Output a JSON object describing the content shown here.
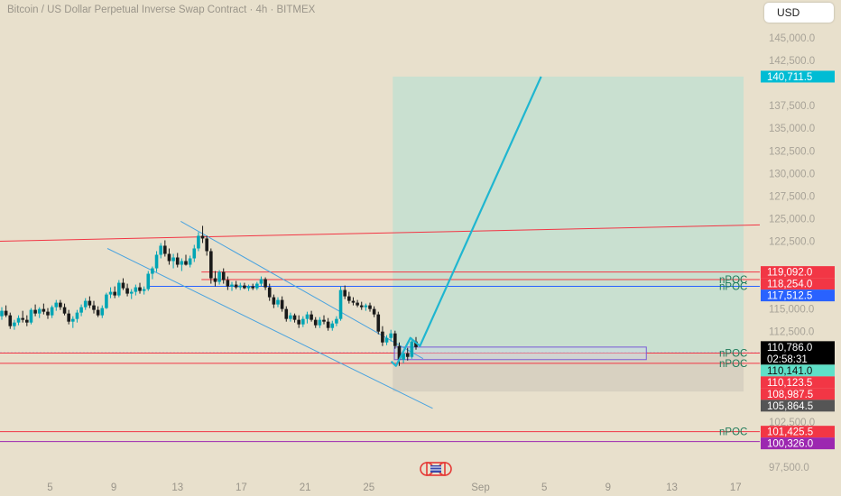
{
  "header": {
    "title": "Bitcoin / US Dollar Perpetual Inverse Swap Contract · 4h · BITMEX",
    "currency": "USD"
  },
  "chart_data": {
    "type": "candlestick",
    "ylim": [
      96000,
      147000
    ],
    "y_ticks": [
      {
        "v": 145000,
        "label": "145,000.0"
      },
      {
        "v": 142500,
        "label": "142,500.0"
      },
      {
        "v": 137500,
        "label": "137,500.0"
      },
      {
        "v": 135000,
        "label": "135,000.0"
      },
      {
        "v": 132500,
        "label": "132,500.0"
      },
      {
        "v": 130000,
        "label": "130,000.0"
      },
      {
        "v": 127500,
        "label": "127,500.0"
      },
      {
        "v": 125000,
        "label": "125,000.0"
      },
      {
        "v": 122500,
        "label": "122,500.0"
      },
      {
        "v": 115000,
        "label": "115,000.0"
      },
      {
        "v": 112500,
        "label": "112,500.0"
      },
      {
        "v": 102500,
        "label": "102,500.0"
      },
      {
        "v": 97500,
        "label": "97,500.0"
      }
    ],
    "x_ticks": [
      {
        "day": 5,
        "label": "5"
      },
      {
        "day": 9,
        "label": "9"
      },
      {
        "day": 13,
        "label": "13"
      },
      {
        "day": 17,
        "label": "17"
      },
      {
        "day": 21,
        "label": "21"
      },
      {
        "day": 25,
        "label": "25"
      },
      {
        "day": 32,
        "label": "Sep"
      },
      {
        "day": 36,
        "label": "5"
      },
      {
        "day": 40,
        "label": "9"
      },
      {
        "day": 44,
        "label": "13"
      },
      {
        "day": 48,
        "label": "17"
      }
    ],
    "price_tags": [
      {
        "value": 140711.5,
        "label": "140,711.5",
        "color": "#00bcd4",
        "text_color": "#ffffff"
      },
      {
        "value": 119092.0,
        "label": "119,092.0",
        "color": "#f23645",
        "text_color": "#ffffff"
      },
      {
        "value": 118254.0,
        "label": "118,254.0",
        "color": "#f23645",
        "text_color": "#ffffff"
      },
      {
        "value": 117512.5,
        "label": "117,512.5",
        "color": "#2962ff",
        "text_color": "#ffffff"
      },
      {
        "value": 110786.0,
        "label": "110,786.0",
        "color": "#000000",
        "text_color": "#ffffff",
        "countdown": "02:58:31"
      },
      {
        "value": 110141.0,
        "label": "110,141.0",
        "color": "#5fe0c8",
        "text_color": "#111111"
      },
      {
        "value": 110123.5,
        "label": "110,123.5",
        "color": "#f23645",
        "text_color": "#ffffff"
      },
      {
        "value": 108987.5,
        "label": "108,987.5",
        "color": "#f23645",
        "text_color": "#ffffff"
      },
      {
        "value": 105864.5,
        "label": "105,864.5",
        "color": "#555555",
        "text_color": "#ffffff"
      },
      {
        "value": 101425.5,
        "label": "101,425.5",
        "color": "#f23645",
        "text_color": "#ffffff"
      },
      {
        "value": 100326.0,
        "label": "100,326.0",
        "color": "#9c27b0",
        "text_color": "#ffffff"
      }
    ],
    "npoc_labels": [
      {
        "value": 118254.0,
        "label": "nPOC"
      },
      {
        "value": 117512.5,
        "label": "nPOC"
      },
      {
        "value": 110123.5,
        "label": "nPOC"
      },
      {
        "value": 108987.5,
        "label": "nPOC"
      },
      {
        "value": 101425.5,
        "label": "nPOC"
      }
    ],
    "horizontal_lines": [
      {
        "value": 119092.0,
        "from_day": 14.5,
        "color": "#f23645"
      },
      {
        "value": 118254.0,
        "from_day": 14.5,
        "color": "#f23645"
      },
      {
        "value": 117512.5,
        "from_day": 11.2,
        "color": "#2962ff"
      },
      {
        "value": 110141.0,
        "from_day": 0,
        "color": "#2962ff",
        "dashed": true
      },
      {
        "value": 110123.5,
        "from_day": 0,
        "color": "#f23645"
      },
      {
        "value": 108987.5,
        "from_day": 0,
        "color": "#f23645"
      },
      {
        "value": 101425.5,
        "from_day": 0,
        "color": "#f23645"
      },
      {
        "value": 100326.0,
        "from_day": 0,
        "color": "#9c27b0"
      }
    ],
    "resistance_line": {
      "day1": 0,
      "price1": 122500,
      "day2": 48,
      "price2": 124300,
      "color": "#f23645"
    },
    "channel_upper": {
      "day1": 13.2,
      "price1": 124700,
      "day2": 28.4,
      "price2": 109500,
      "color": "#4aa3df"
    },
    "channel_lower": {
      "day1": 8.6,
      "price1": 121700,
      "day2": 29.0,
      "price2": 104000,
      "color": "#4aa3df"
    },
    "long_position": {
      "day_start": 26.5,
      "day_end": 48.5,
      "entry": 110141.0,
      "target": 140711.5,
      "stop": 105864.5
    },
    "forecast_path": [
      {
        "day": 26.4,
        "price": 109200
      },
      {
        "day": 26.7,
        "price": 108700
      },
      {
        "day": 27.6,
        "price": 111800
      },
      {
        "day": 28.2,
        "price": 110900
      },
      {
        "day": 35.8,
        "price": 140711.5
      }
    ],
    "volume_profile_box": {
      "day_start": 26.6,
      "day_end": 42.4,
      "top": 110786.0,
      "bottom": 109400
    },
    "candles": [
      {
        "o": 114200,
        "h": 115200,
        "l": 113800,
        "c": 114800
      },
      {
        "o": 114800,
        "h": 115400,
        "l": 114100,
        "c": 114300
      },
      {
        "o": 114300,
        "h": 114600,
        "l": 112800,
        "c": 113100
      },
      {
        "o": 113100,
        "h": 113800,
        "l": 112700,
        "c": 113500
      },
      {
        "o": 113500,
        "h": 114300,
        "l": 113200,
        "c": 114000
      },
      {
        "o": 114000,
        "h": 114800,
        "l": 113500,
        "c": 113800
      },
      {
        "o": 113800,
        "h": 114300,
        "l": 113100,
        "c": 113500
      },
      {
        "o": 113500,
        "h": 115100,
        "l": 113300,
        "c": 114900
      },
      {
        "o": 114900,
        "h": 115500,
        "l": 114200,
        "c": 114500
      },
      {
        "o": 114500,
        "h": 115200,
        "l": 114000,
        "c": 115000
      },
      {
        "o": 115000,
        "h": 115600,
        "l": 114400,
        "c": 114700
      },
      {
        "o": 114700,
        "h": 115100,
        "l": 113900,
        "c": 114300
      },
      {
        "o": 114300,
        "h": 115400,
        "l": 114000,
        "c": 115200
      },
      {
        "o": 115200,
        "h": 116000,
        "l": 114800,
        "c": 115700
      },
      {
        "o": 115700,
        "h": 116000,
        "l": 114900,
        "c": 115200
      },
      {
        "o": 115200,
        "h": 115600,
        "l": 114300,
        "c": 114500
      },
      {
        "o": 114500,
        "h": 114900,
        "l": 113300,
        "c": 113600
      },
      {
        "o": 113600,
        "h": 114200,
        "l": 112900,
        "c": 113900
      },
      {
        "o": 113900,
        "h": 114900,
        "l": 113500,
        "c": 114600
      },
      {
        "o": 114600,
        "h": 115500,
        "l": 114200,
        "c": 115200
      },
      {
        "o": 115200,
        "h": 116200,
        "l": 114900,
        "c": 115900
      },
      {
        "o": 115900,
        "h": 116400,
        "l": 115100,
        "c": 115400
      },
      {
        "o": 115400,
        "h": 115900,
        "l": 114500,
        "c": 114900
      },
      {
        "o": 114900,
        "h": 115300,
        "l": 114100,
        "c": 114300
      },
      {
        "o": 114300,
        "h": 115400,
        "l": 114000,
        "c": 115100
      },
      {
        "o": 115100,
        "h": 116800,
        "l": 115000,
        "c": 116600
      },
      {
        "o": 116600,
        "h": 117400,
        "l": 116200,
        "c": 116900
      },
      {
        "o": 116900,
        "h": 117500,
        "l": 116200,
        "c": 116500
      },
      {
        "o": 116500,
        "h": 118200,
        "l": 116300,
        "c": 117900
      },
      {
        "o": 117900,
        "h": 118400,
        "l": 117100,
        "c": 117300
      },
      {
        "o": 117300,
        "h": 117800,
        "l": 116400,
        "c": 116700
      },
      {
        "o": 116700,
        "h": 117200,
        "l": 116100,
        "c": 116900
      },
      {
        "o": 116900,
        "h": 117700,
        "l": 116500,
        "c": 117400
      },
      {
        "o": 117400,
        "h": 117900,
        "l": 116700,
        "c": 117000
      },
      {
        "o": 117000,
        "h": 117500,
        "l": 116600,
        "c": 117200
      },
      {
        "o": 117200,
        "h": 119200,
        "l": 117000,
        "c": 118900
      },
      {
        "o": 118900,
        "h": 119700,
        "l": 118300,
        "c": 119500
      },
      {
        "o": 119500,
        "h": 121400,
        "l": 119100,
        "c": 121000
      },
      {
        "o": 121000,
        "h": 122300,
        "l": 120600,
        "c": 122000
      },
      {
        "o": 122000,
        "h": 122600,
        "l": 120800,
        "c": 121100
      },
      {
        "o": 121100,
        "h": 121700,
        "l": 119900,
        "c": 120300
      },
      {
        "o": 120300,
        "h": 121100,
        "l": 119500,
        "c": 120700
      },
      {
        "o": 120700,
        "h": 121200,
        "l": 119600,
        "c": 119900
      },
      {
        "o": 119900,
        "h": 120600,
        "l": 119200,
        "c": 120300
      },
      {
        "o": 120300,
        "h": 121000,
        "l": 119800,
        "c": 119900
      },
      {
        "o": 119900,
        "h": 120900,
        "l": 119600,
        "c": 120600
      },
      {
        "o": 120600,
        "h": 122100,
        "l": 120200,
        "c": 121700
      },
      {
        "o": 121700,
        "h": 123500,
        "l": 121400,
        "c": 123100
      },
      {
        "o": 123100,
        "h": 124200,
        "l": 122300,
        "c": 122800
      },
      {
        "o": 122800,
        "h": 123100,
        "l": 120900,
        "c": 121400
      },
      {
        "o": 121400,
        "h": 121700,
        "l": 117800,
        "c": 118400
      },
      {
        "o": 118400,
        "h": 119200,
        "l": 117500,
        "c": 118000
      },
      {
        "o": 118000,
        "h": 119300,
        "l": 117700,
        "c": 119100
      },
      {
        "o": 119100,
        "h": 119500,
        "l": 117800,
        "c": 118200
      },
      {
        "o": 118200,
        "h": 118600,
        "l": 117100,
        "c": 117500
      },
      {
        "o": 117500,
        "h": 118000,
        "l": 117000,
        "c": 117700
      },
      {
        "o": 117700,
        "h": 118100,
        "l": 117200,
        "c": 117400
      },
      {
        "o": 117400,
        "h": 117900,
        "l": 117100,
        "c": 117600
      },
      {
        "o": 117600,
        "h": 117900,
        "l": 117200,
        "c": 117300
      },
      {
        "o": 117300,
        "h": 117700,
        "l": 117000,
        "c": 117500
      },
      {
        "o": 117500,
        "h": 117800,
        "l": 117100,
        "c": 117300
      },
      {
        "o": 117300,
        "h": 118000,
        "l": 117100,
        "c": 117800
      },
      {
        "o": 117800,
        "h": 118600,
        "l": 117500,
        "c": 118300
      },
      {
        "o": 118300,
        "h": 118500,
        "l": 117100,
        "c": 117400
      },
      {
        "o": 117400,
        "h": 117800,
        "l": 115900,
        "c": 116300
      },
      {
        "o": 116300,
        "h": 116600,
        "l": 115100,
        "c": 115500
      },
      {
        "o": 115500,
        "h": 116300,
        "l": 115200,
        "c": 116000
      },
      {
        "o": 116000,
        "h": 116400,
        "l": 114700,
        "c": 115000
      },
      {
        "o": 115000,
        "h": 115300,
        "l": 113600,
        "c": 113900
      },
      {
        "o": 113900,
        "h": 114600,
        "l": 113600,
        "c": 114300
      },
      {
        "o": 114300,
        "h": 114500,
        "l": 113500,
        "c": 113800
      },
      {
        "o": 113800,
        "h": 114300,
        "l": 112900,
        "c": 113300
      },
      {
        "o": 113300,
        "h": 114200,
        "l": 113000,
        "c": 113900
      },
      {
        "o": 113900,
        "h": 114700,
        "l": 113400,
        "c": 114400
      },
      {
        "o": 114400,
        "h": 114800,
        "l": 113600,
        "c": 113800
      },
      {
        "o": 113800,
        "h": 114100,
        "l": 112900,
        "c": 113200
      },
      {
        "o": 113200,
        "h": 114100,
        "l": 112900,
        "c": 113800
      },
      {
        "o": 113800,
        "h": 114300,
        "l": 113300,
        "c": 113600
      },
      {
        "o": 113600,
        "h": 114000,
        "l": 112600,
        "c": 112900
      },
      {
        "o": 112900,
        "h": 113700,
        "l": 112600,
        "c": 113400
      },
      {
        "o": 113400,
        "h": 114200,
        "l": 113100,
        "c": 113900
      },
      {
        "o": 113900,
        "h": 117500,
        "l": 113700,
        "c": 117100
      },
      {
        "o": 117100,
        "h": 117600,
        "l": 116100,
        "c": 116400
      },
      {
        "o": 116400,
        "h": 116900,
        "l": 115600,
        "c": 115900
      },
      {
        "o": 115900,
        "h": 116300,
        "l": 115400,
        "c": 115700
      },
      {
        "o": 115700,
        "h": 116000,
        "l": 115200,
        "c": 115400
      },
      {
        "o": 115400,
        "h": 115800,
        "l": 114900,
        "c": 115200
      },
      {
        "o": 115200,
        "h": 115600,
        "l": 114800,
        "c": 115400
      },
      {
        "o": 115400,
        "h": 115700,
        "l": 114700,
        "c": 115000
      },
      {
        "o": 115000,
        "h": 115300,
        "l": 114100,
        "c": 114400
      },
      {
        "o": 114400,
        "h": 114700,
        "l": 112200,
        "c": 112500
      },
      {
        "o": 112500,
        "h": 113100,
        "l": 110900,
        "c": 111300
      },
      {
        "o": 111300,
        "h": 112100,
        "l": 111000,
        "c": 111800
      },
      {
        "o": 111800,
        "h": 112700,
        "l": 111400,
        "c": 112300
      },
      {
        "o": 112300,
        "h": 112600,
        "l": 110600,
        "c": 110900
      },
      {
        "o": 110900,
        "h": 111300,
        "l": 108700,
        "c": 109400
      },
      {
        "o": 109400,
        "h": 110400,
        "l": 109000,
        "c": 110100
      },
      {
        "o": 110100,
        "h": 110700,
        "l": 109300,
        "c": 109700
      },
      {
        "o": 109700,
        "h": 111800,
        "l": 109500,
        "c": 111400
      },
      {
        "o": 111400,
        "h": 111900,
        "l": 110500,
        "c": 110786
      }
    ]
  }
}
